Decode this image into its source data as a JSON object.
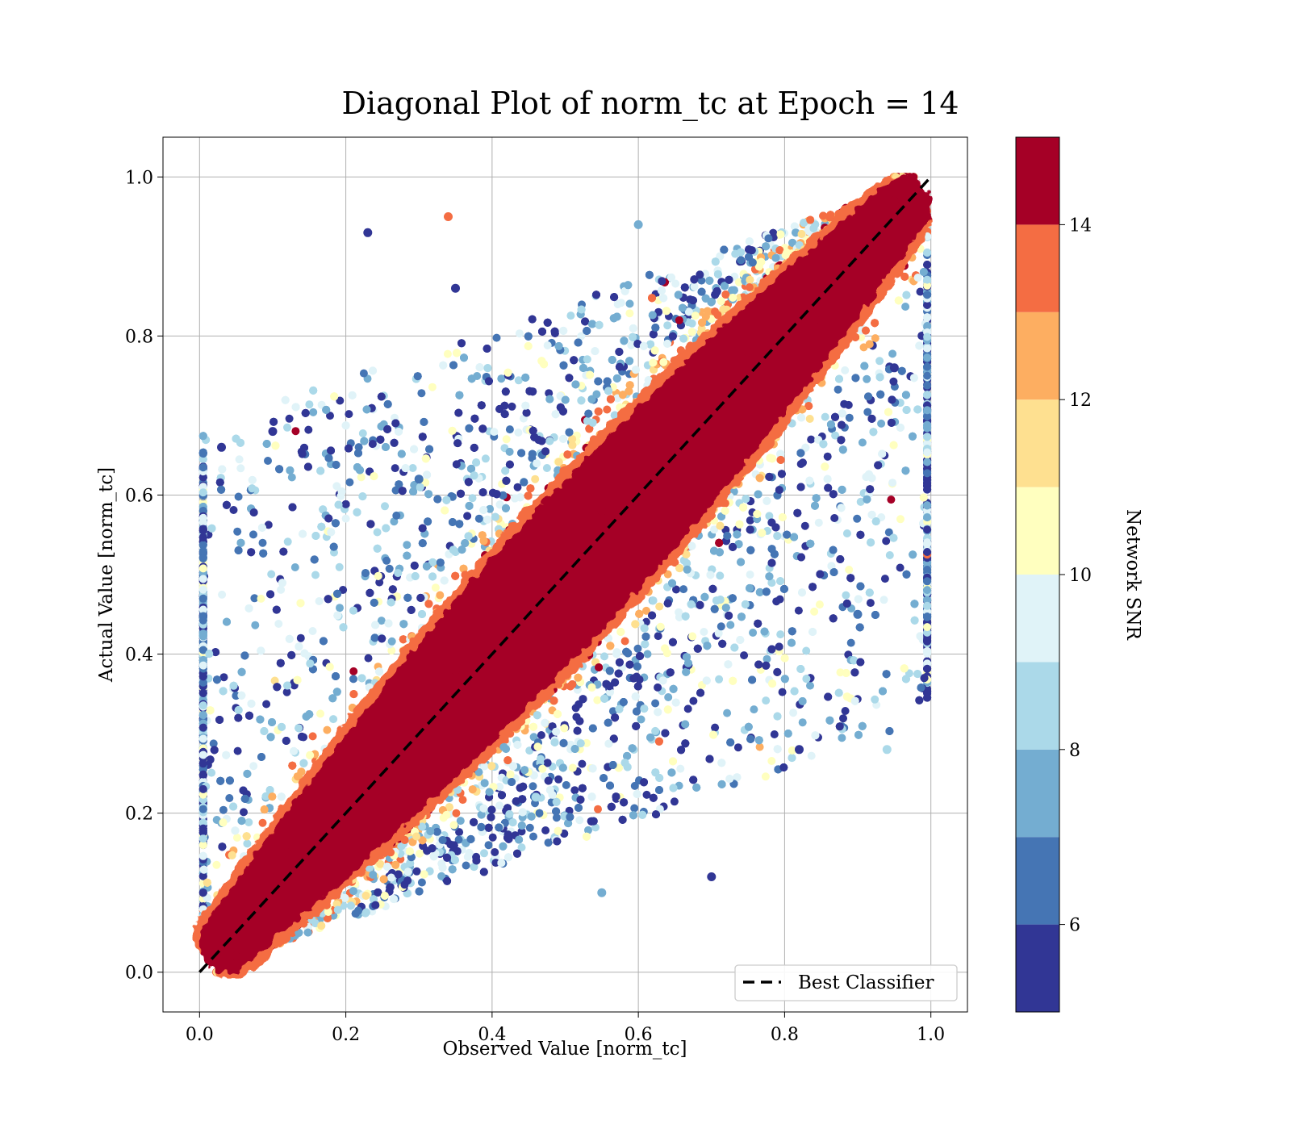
{
  "chart_data": {
    "type": "scatter",
    "title": "Diagonal Plot of norm_tc at Epoch = 14",
    "xlabel": "Observed Value [norm_tc]",
    "ylabel": "Actual Value [norm_tc]",
    "xlim": [
      -0.05,
      1.05
    ],
    "ylim": [
      -0.05,
      1.05
    ],
    "xticks": [
      "0.0",
      "0.2",
      "0.4",
      "0.6",
      "0.8",
      "1.0"
    ],
    "yticks": [
      "0.0",
      "0.2",
      "0.4",
      "0.6",
      "0.8",
      "1.0"
    ],
    "grid": true,
    "legend": {
      "placement": "lower-right",
      "entries": [
        "Best Classifier"
      ]
    },
    "reference_line": {
      "name": "Best Classifier",
      "style": "dashed",
      "color": "#000000",
      "x": [
        0,
        1
      ],
      "y": [
        0,
        1
      ]
    },
    "colorbar": {
      "label": "Network SNR",
      "range": [
        5,
        15
      ],
      "ticks": [
        "6",
        "8",
        "10",
        "12",
        "14"
      ],
      "tick_values": [
        6,
        8,
        10,
        12,
        14
      ],
      "colors": [
        "#313695",
        "#4575b4",
        "#74add1",
        "#abd9e9",
        "#e0f3f8",
        "#ffffbf",
        "#fee090",
        "#fdae61",
        "#f46d43",
        "#a50026"
      ],
      "levels": [
        5,
        6,
        7,
        8,
        9,
        10,
        11,
        12,
        13,
        14,
        15
      ]
    },
    "points": [
      {
        "x": 0.05,
        "y": 0.02,
        "snr": 15
      },
      {
        "x": 0.12,
        "y": 0.15,
        "snr": 15
      },
      {
        "x": 0.25,
        "y": 0.22,
        "snr": 15
      },
      {
        "x": 0.35,
        "y": 0.38,
        "snr": 15
      },
      {
        "x": 0.45,
        "y": 0.42,
        "snr": 15
      },
      {
        "x": 0.55,
        "y": 0.58,
        "snr": 15
      },
      {
        "x": 0.65,
        "y": 0.62,
        "snr": 15
      },
      {
        "x": 0.75,
        "y": 0.78,
        "snr": 15
      },
      {
        "x": 0.85,
        "y": 0.82,
        "snr": 15
      },
      {
        "x": 0.95,
        "y": 0.97,
        "snr": 15
      },
      {
        "x": 0.23,
        "y": 0.93,
        "snr": 5.5
      },
      {
        "x": 0.35,
        "y": 0.86,
        "snr": 5.5
      },
      {
        "x": 0.1,
        "y": 0.68,
        "snr": 5.5
      },
      {
        "x": 0.3,
        "y": 0.62,
        "snr": 6.5
      },
      {
        "x": 0.6,
        "y": 0.94,
        "snr": 7.5
      },
      {
        "x": 0.7,
        "y": 0.12,
        "snr": 5.5
      },
      {
        "x": 0.82,
        "y": 0.28,
        "snr": 5.5
      },
      {
        "x": 0.9,
        "y": 0.45,
        "snr": 6.5
      },
      {
        "x": 0.55,
        "y": 0.1,
        "snr": 7.5
      },
      {
        "x": 0.46,
        "y": 0.22,
        "snr": 8.5
      },
      {
        "x": 0.95,
        "y": 0.76,
        "snr": 5.5
      },
      {
        "x": 0.03,
        "y": 0.66,
        "snr": 5.5
      },
      {
        "x": 0.94,
        "y": 0.28,
        "snr": 8.5
      },
      {
        "x": 0.34,
        "y": 0.95,
        "snr": 13.5
      }
    ]
  }
}
